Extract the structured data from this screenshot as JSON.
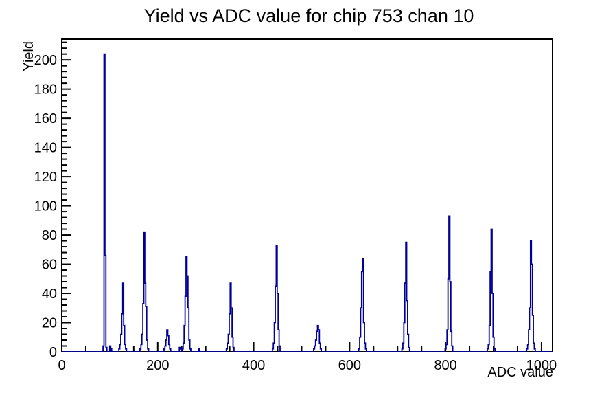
{
  "page": {
    "background": "#ffffff"
  },
  "chart_data": {
    "type": "bar",
    "variant": "step-outline-histogram",
    "title": "Yield vs ADC value for chip 753 chan 10",
    "xlabel": "ADC value",
    "ylabel": "Yield",
    "xlim": [
      0,
      1023
    ],
    "ylim": [
      0,
      214.2
    ],
    "grid": false,
    "legend": "none",
    "x_major_tick_step": 200,
    "x_minor_tick_step": 50,
    "y_major_tick_step": 20,
    "y_minor_tick_step": 4,
    "x_tick_labels": [
      "0",
      "200",
      "400",
      "600",
      "800",
      "1000"
    ],
    "y_tick_labels": [
      "0",
      "20",
      "40",
      "60",
      "80",
      "100",
      "120",
      "140",
      "160",
      "180",
      "200"
    ],
    "line_color": "#000099",
    "frame_color": "#000000",
    "bin_width": 2,
    "bins": [
      [
        86,
        4
      ],
      [
        88,
        204
      ],
      [
        90,
        66
      ],
      [
        92,
        3
      ],
      [
        100,
        4
      ],
      [
        102,
        2
      ],
      [
        119,
        2
      ],
      [
        121,
        5
      ],
      [
        123,
        12
      ],
      [
        125,
        26
      ],
      [
        127,
        47
      ],
      [
        129,
        18
      ],
      [
        131,
        5
      ],
      [
        133,
        2
      ],
      [
        163,
        2
      ],
      [
        165,
        5
      ],
      [
        167,
        12
      ],
      [
        169,
        33
      ],
      [
        171,
        82
      ],
      [
        173,
        47
      ],
      [
        175,
        31
      ],
      [
        177,
        8
      ],
      [
        179,
        2
      ],
      [
        213,
        2
      ],
      [
        215,
        4
      ],
      [
        217,
        8
      ],
      [
        219,
        15
      ],
      [
        221,
        11
      ],
      [
        223,
        5
      ],
      [
        225,
        2
      ],
      [
        245,
        3
      ],
      [
        247,
        2
      ],
      [
        251,
        2
      ],
      [
        253,
        6
      ],
      [
        255,
        18
      ],
      [
        257,
        38
      ],
      [
        259,
        65
      ],
      [
        261,
        52
      ],
      [
        263,
        30
      ],
      [
        265,
        8
      ],
      [
        267,
        2
      ],
      [
        285,
        2
      ],
      [
        343,
        2
      ],
      [
        345,
        6
      ],
      [
        347,
        12
      ],
      [
        349,
        26
      ],
      [
        351,
        47
      ],
      [
        353,
        30
      ],
      [
        355,
        10
      ],
      [
        357,
        3
      ],
      [
        439,
        2
      ],
      [
        441,
        6
      ],
      [
        443,
        20
      ],
      [
        445,
        45
      ],
      [
        447,
        73
      ],
      [
        449,
        40
      ],
      [
        451,
        15
      ],
      [
        453,
        4
      ],
      [
        525,
        2
      ],
      [
        527,
        4
      ],
      [
        529,
        8
      ],
      [
        531,
        14
      ],
      [
        533,
        18
      ],
      [
        535,
        15
      ],
      [
        537,
        6
      ],
      [
        539,
        2
      ],
      [
        619,
        2
      ],
      [
        621,
        10
      ],
      [
        623,
        30
      ],
      [
        625,
        55
      ],
      [
        627,
        64
      ],
      [
        629,
        20
      ],
      [
        631,
        6
      ],
      [
        633,
        2
      ],
      [
        709,
        2
      ],
      [
        711,
        6
      ],
      [
        713,
        20
      ],
      [
        715,
        47
      ],
      [
        717,
        75
      ],
      [
        719,
        35
      ],
      [
        721,
        12
      ],
      [
        723,
        3
      ],
      [
        799,
        2
      ],
      [
        801,
        5
      ],
      [
        803,
        15
      ],
      [
        805,
        50
      ],
      [
        807,
        93
      ],
      [
        809,
        48
      ],
      [
        811,
        14
      ],
      [
        813,
        4
      ],
      [
        887,
        2
      ],
      [
        889,
        5
      ],
      [
        891,
        18
      ],
      [
        893,
        55
      ],
      [
        895,
        84
      ],
      [
        897,
        40
      ],
      [
        899,
        10
      ],
      [
        901,
        2
      ],
      [
        969,
        2
      ],
      [
        971,
        5
      ],
      [
        973,
        15
      ],
      [
        975,
        30
      ],
      [
        977,
        76
      ],
      [
        979,
        60
      ],
      [
        981,
        25
      ],
      [
        983,
        6
      ],
      [
        985,
        2
      ]
    ]
  }
}
